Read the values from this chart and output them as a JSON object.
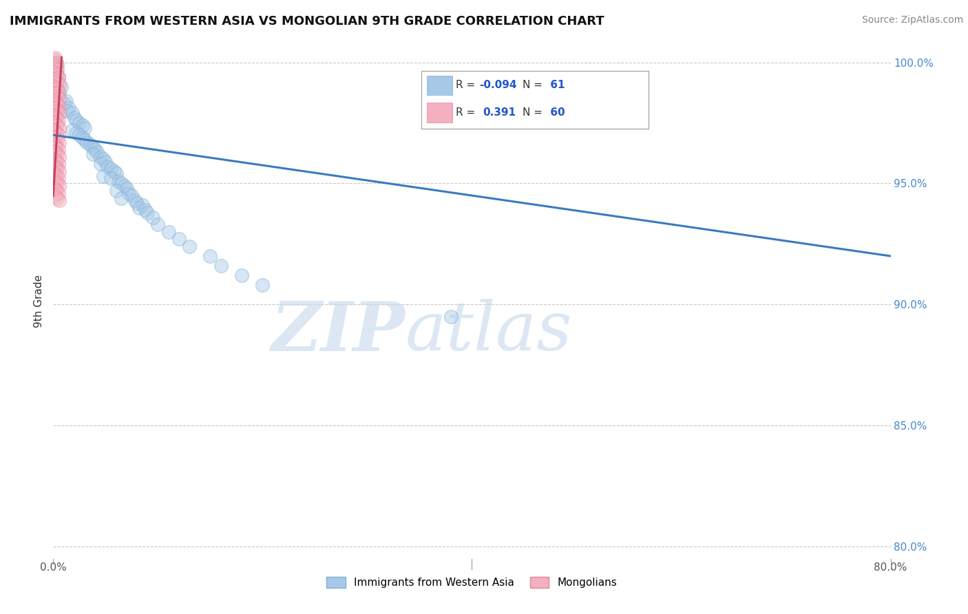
{
  "title": "IMMIGRANTS FROM WESTERN ASIA VS MONGOLIAN 9TH GRADE CORRELATION CHART",
  "source": "Source: ZipAtlas.com",
  "ylabel": "9th Grade",
  "legend_entries": [
    {
      "label": "Immigrants from Western Asia",
      "color": "#a8c4e0",
      "R": "-0.094",
      "N": "61"
    },
    {
      "label": "Mongolians",
      "color": "#f4a0b0",
      "R": "0.391",
      "N": "60"
    }
  ],
  "xlim": [
    0.0,
    0.8
  ],
  "ylim": [
    0.795,
    1.008
  ],
  "xticks": [
    0.0,
    0.2,
    0.4,
    0.6,
    0.8
  ],
  "xtick_labels": [
    "0.0%",
    "",
    "",
    "",
    "80.0%"
  ],
  "ytick_labels": [
    "80.0%",
    "85.0%",
    "90.0%",
    "95.0%",
    "100.0%"
  ],
  "yticks": [
    0.8,
    0.85,
    0.9,
    0.95,
    1.0
  ],
  "blue_scatter": [
    [
      0.002,
      1.0
    ],
    [
      0.004,
      0.999
    ],
    [
      0.003,
      0.997
    ],
    [
      0.005,
      0.994
    ],
    [
      0.008,
      0.99
    ],
    [
      0.006,
      0.987
    ],
    [
      0.012,
      0.984
    ],
    [
      0.01,
      0.983
    ],
    [
      0.015,
      0.981
    ],
    [
      0.013,
      0.98
    ],
    [
      0.018,
      0.979
    ],
    [
      0.02,
      0.977
    ],
    [
      0.022,
      0.976
    ],
    [
      0.025,
      0.975
    ],
    [
      0.028,
      0.974
    ],
    [
      0.03,
      0.973
    ],
    [
      0.018,
      0.972
    ],
    [
      0.022,
      0.971
    ],
    [
      0.025,
      0.97
    ],
    [
      0.028,
      0.969
    ],
    [
      0.03,
      0.968
    ],
    [
      0.032,
      0.967
    ],
    [
      0.035,
      0.966
    ],
    [
      0.038,
      0.965
    ],
    [
      0.04,
      0.964
    ],
    [
      0.042,
      0.963
    ],
    [
      0.038,
      0.962
    ],
    [
      0.045,
      0.961
    ],
    [
      0.048,
      0.96
    ],
    [
      0.05,
      0.959
    ],
    [
      0.045,
      0.958
    ],
    [
      0.052,
      0.957
    ],
    [
      0.055,
      0.956
    ],
    [
      0.058,
      0.955
    ],
    [
      0.06,
      0.954
    ],
    [
      0.048,
      0.953
    ],
    [
      0.055,
      0.952
    ],
    [
      0.062,
      0.951
    ],
    [
      0.065,
      0.95
    ],
    [
      0.068,
      0.949
    ],
    [
      0.07,
      0.948
    ],
    [
      0.06,
      0.947
    ],
    [
      0.072,
      0.946
    ],
    [
      0.075,
      0.945
    ],
    [
      0.065,
      0.944
    ],
    [
      0.078,
      0.943
    ],
    [
      0.08,
      0.942
    ],
    [
      0.085,
      0.941
    ],
    [
      0.082,
      0.94
    ],
    [
      0.088,
      0.939
    ],
    [
      0.09,
      0.938
    ],
    [
      0.095,
      0.936
    ],
    [
      0.1,
      0.933
    ],
    [
      0.11,
      0.93
    ],
    [
      0.12,
      0.927
    ],
    [
      0.13,
      0.924
    ],
    [
      0.15,
      0.92
    ],
    [
      0.16,
      0.916
    ],
    [
      0.18,
      0.912
    ],
    [
      0.2,
      0.908
    ],
    [
      0.38,
      0.895
    ]
  ],
  "pink_scatter": [
    [
      0.002,
      1.002
    ],
    [
      0.001,
      1.001
    ],
    [
      0.003,
      1.0
    ],
    [
      0.001,
      0.999
    ],
    [
      0.002,
      0.998
    ],
    [
      0.004,
      0.997
    ],
    [
      0.001,
      0.996
    ],
    [
      0.003,
      0.995
    ],
    [
      0.005,
      0.994
    ],
    [
      0.002,
      0.993
    ],
    [
      0.004,
      0.992
    ],
    [
      0.006,
      0.991
    ],
    [
      0.001,
      0.99
    ],
    [
      0.003,
      0.989
    ],
    [
      0.005,
      0.988
    ],
    [
      0.002,
      0.987
    ],
    [
      0.004,
      0.986
    ],
    [
      0.006,
      0.985
    ],
    [
      0.001,
      0.984
    ],
    [
      0.003,
      0.983
    ],
    [
      0.005,
      0.982
    ],
    [
      0.002,
      0.981
    ],
    [
      0.004,
      0.98
    ],
    [
      0.006,
      0.979
    ],
    [
      0.001,
      0.978
    ],
    [
      0.003,
      0.977
    ],
    [
      0.005,
      0.976
    ],
    [
      0.002,
      0.975
    ],
    [
      0.004,
      0.974
    ],
    [
      0.006,
      0.973
    ],
    [
      0.001,
      0.972
    ],
    [
      0.003,
      0.971
    ],
    [
      0.005,
      0.97
    ],
    [
      0.002,
      0.969
    ],
    [
      0.004,
      0.968
    ],
    [
      0.006,
      0.967
    ],
    [
      0.001,
      0.966
    ],
    [
      0.003,
      0.965
    ],
    [
      0.005,
      0.964
    ],
    [
      0.002,
      0.963
    ],
    [
      0.004,
      0.962
    ],
    [
      0.006,
      0.961
    ],
    [
      0.001,
      0.96
    ],
    [
      0.003,
      0.959
    ],
    [
      0.005,
      0.958
    ],
    [
      0.002,
      0.957
    ],
    [
      0.004,
      0.956
    ],
    [
      0.006,
      0.955
    ],
    [
      0.001,
      0.954
    ],
    [
      0.003,
      0.953
    ],
    [
      0.005,
      0.952
    ],
    [
      0.002,
      0.951
    ],
    [
      0.004,
      0.95
    ],
    [
      0.006,
      0.949
    ],
    [
      0.001,
      0.948
    ],
    [
      0.003,
      0.947
    ],
    [
      0.005,
      0.946
    ],
    [
      0.002,
      0.945
    ],
    [
      0.004,
      0.944
    ],
    [
      0.006,
      0.943
    ]
  ],
  "blue_line_x": [
    0.0,
    0.8
  ],
  "blue_line_y": [
    0.97,
    0.92
  ],
  "pink_line_x": [
    0.0,
    0.008
  ],
  "pink_line_y": [
    0.945,
    1.002
  ],
  "scatter_size": 200,
  "scatter_alpha": 0.45,
  "blue_color": "#7ab0d4",
  "pink_color": "#e8829a",
  "blue_fill": "#a8c8e8",
  "pink_fill": "#f4b0c0",
  "line_blue": "#3a7abf",
  "line_pink": "#c8405a",
  "watermark_zip": "ZIP",
  "watermark_atlas": "atlas",
  "grid_color": "#c8c8c8",
  "background_color": "#ffffff"
}
